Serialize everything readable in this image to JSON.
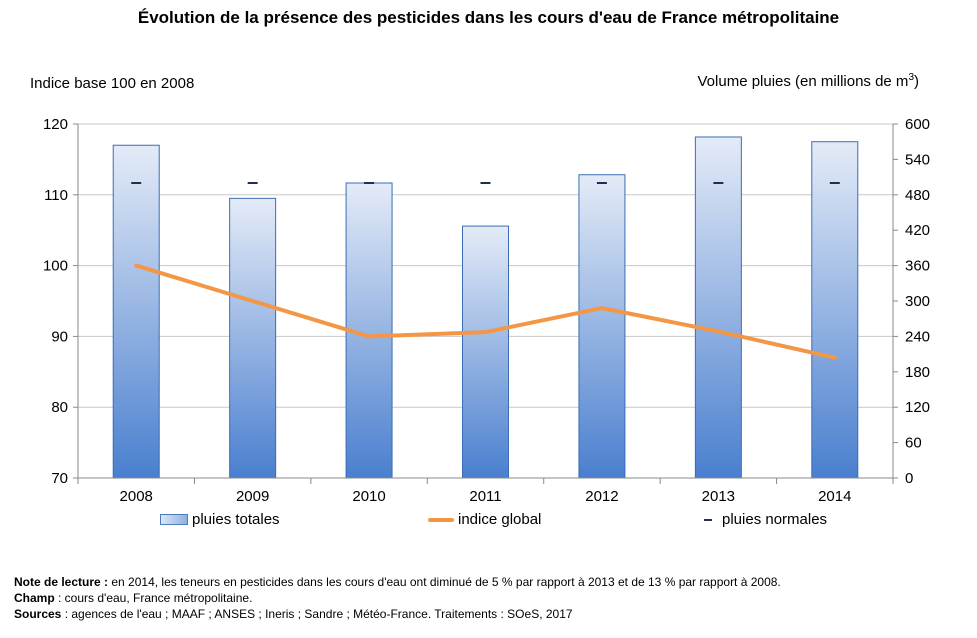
{
  "chart_data": {
    "type": "bar",
    "title": "Évolution de la présence des pesticides dans les cours d'eau de France métropolitaine",
    "ylabel_left": "Indice base 100 en 2008",
    "ylabel_right_prefix": "Volume pluies (en millions de m",
    "ylabel_right_sup": "3",
    "ylabel_right_suffix": ")",
    "categories": [
      "2008",
      "2009",
      "2010",
      "2011",
      "2012",
      "2013",
      "2014"
    ],
    "y_left": {
      "lim": [
        70,
        120
      ],
      "ticks": [
        "70",
        "80",
        "90",
        "100",
        "110",
        "120"
      ]
    },
    "y_right": {
      "lim": [
        0,
        600
      ],
      "ticks": [
        "0",
        "60",
        "120",
        "180",
        "240",
        "300",
        "360",
        "420",
        "480",
        "540",
        "600"
      ]
    },
    "series": [
      {
        "name": "pluies totales",
        "type": "bar",
        "axis": "right",
        "values": [
          564,
          474,
          500,
          427,
          514,
          578,
          570
        ]
      },
      {
        "name": "indice global",
        "type": "line",
        "axis": "left",
        "values": [
          100,
          95,
          90,
          90.6,
          94,
          90.7,
          87
        ]
      },
      {
        "name": "pluies normales",
        "type": "marker",
        "axis": "right",
        "values": [
          500,
          500,
          500,
          500,
          500,
          500,
          500
        ]
      }
    ],
    "grid": true,
    "legend": "bottom",
    "colors": {
      "bar_light": "#e4ebf7",
      "bar_dark": "#4a7fcf",
      "line": "#f39646",
      "marker": "#1f2f50",
      "grid": "#c8c8c8"
    }
  },
  "notes": {
    "lecture_label": "Note de lecture :",
    "lecture_text": " en 2014, les teneurs en pesticides dans les cours d'eau ont diminué de 5 % par rapport à 2013 et de 13 % par rapport à 2008.",
    "champ_label": "Champ",
    "champ_text": " : cours d'eau, France métropolitaine.",
    "sources_label": "Sources",
    "sources_text": " : agences de l'eau ; MAAF ; ANSES ; Ineris ; Sandre ; Météo-France. Traitements : SOeS, 2017"
  }
}
